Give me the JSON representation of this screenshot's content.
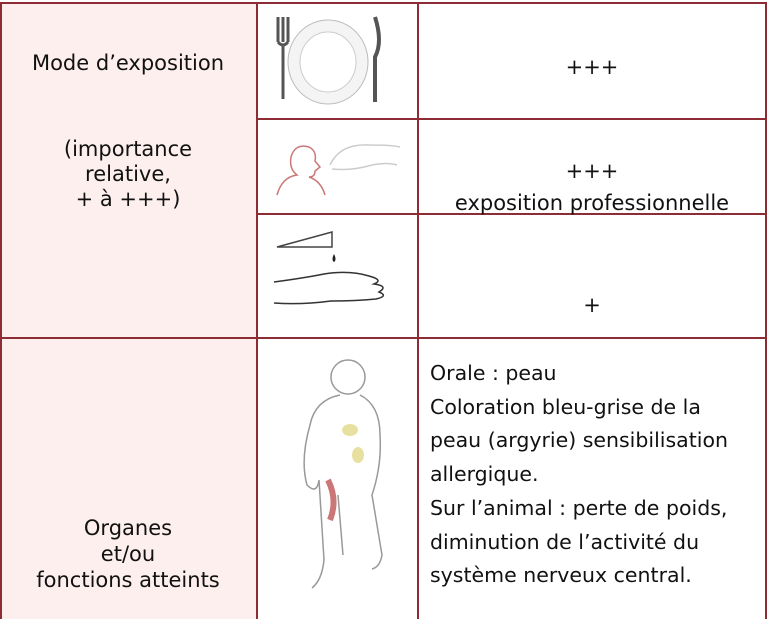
{
  "exposure": {
    "title": "Mode d’exposition",
    "note": [
      "(importance",
      "relative,",
      "+ à +++)"
    ],
    "routes": [
      {
        "level": "+++"
      },
      {
        "level": "+++",
        "note": "exposition professionnelle"
      },
      {
        "level": "+"
      }
    ]
  },
  "organs": {
    "label": [
      "Organes",
      "et/ou",
      "fonctions atteints"
    ],
    "description": [
      "Orale : peau",
      "Coloration bleu-grise de la",
      "peau (argyrie)  sensibilisation",
      "allergique.",
      "Sur l’animal : perte de poids,",
      "diminution de l’activité du",
      "système nerveux central."
    ]
  }
}
